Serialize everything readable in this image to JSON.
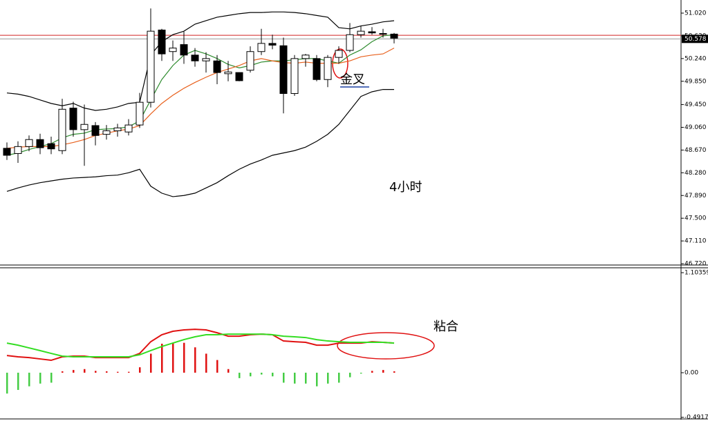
{
  "chart_data": [
    {
      "type": "candlestick",
      "open": [
        48.7,
        48.61,
        48.73,
        48.85,
        48.78,
        48.66,
        49.39,
        49.02,
        49.09,
        48.94,
        49.0,
        48.98,
        49.1,
        49.49,
        50.73,
        50.36,
        50.48,
        50.3,
        50.2,
        50.2,
        49.98,
        50.0,
        50.04,
        50.36,
        50.5,
        50.46,
        49.64,
        50.24,
        50.24,
        49.88,
        50.26,
        50.38,
        50.65,
        50.7,
        50.66,
        50.66
      ],
      "high": [
        48.8,
        48.82,
        48.92,
        48.95,
        48.9,
        49.55,
        49.5,
        49.45,
        49.15,
        49.1,
        49.12,
        49.2,
        49.65,
        51.1,
        50.75,
        50.55,
        50.7,
        50.42,
        50.35,
        50.3,
        50.2,
        50.0,
        50.45,
        50.75,
        50.65,
        50.6,
        50.3,
        50.32,
        50.3,
        50.3,
        50.45,
        50.85,
        50.8,
        50.78,
        50.75,
        50.68
      ],
      "low": [
        48.5,
        48.45,
        48.65,
        48.6,
        48.6,
        48.6,
        48.9,
        48.4,
        48.75,
        48.85,
        48.9,
        48.92,
        49.05,
        49.4,
        50.2,
        50.2,
        50.15,
        50.1,
        50.0,
        49.8,
        49.85,
        49.85,
        50.0,
        50.3,
        50.4,
        49.3,
        49.6,
        50.1,
        49.85,
        49.75,
        50.15,
        50.35,
        50.6,
        50.65,
        50.6,
        50.5
      ],
      "close": [
        48.58,
        48.73,
        48.85,
        48.71,
        48.69,
        49.37,
        49.02,
        49.11,
        48.92,
        49.0,
        49.05,
        49.1,
        49.49,
        50.71,
        50.32,
        50.42,
        50.3,
        50.2,
        50.24,
        50.0,
        50.01,
        49.86,
        50.36,
        50.5,
        50.47,
        49.64,
        50.24,
        50.3,
        49.88,
        50.26,
        50.38,
        50.65,
        50.71,
        50.68,
        50.67,
        50.59
      ],
      "series": [
        {
          "color": "#000000",
          "values": [
            49.65,
            49.63,
            49.59,
            49.53,
            49.47,
            49.43,
            49.47,
            49.39,
            49.35,
            49.37,
            49.41,
            49.47,
            49.49,
            50.3,
            50.53,
            50.65,
            50.71,
            50.83,
            50.89,
            50.95,
            50.98,
            51.01,
            51.03,
            51.03,
            51.04,
            51.04,
            51.03,
            51.01,
            50.98,
            50.95,
            50.77,
            50.75,
            50.8,
            50.83,
            50.87,
            50.89
          ]
        },
        {
          "color": "#000000",
          "values": [
            47.96,
            48.02,
            48.07,
            48.11,
            48.14,
            48.17,
            48.19,
            48.2,
            48.21,
            48.23,
            48.24,
            48.28,
            48.34,
            48.05,
            47.93,
            47.87,
            47.89,
            47.93,
            48.02,
            48.11,
            48.23,
            48.34,
            48.43,
            48.5,
            48.58,
            48.62,
            48.66,
            48.72,
            48.82,
            48.94,
            49.11,
            49.35,
            49.59,
            49.67,
            49.71,
            49.71
          ]
        },
        {
          "color": "#2e8b2e",
          "values": [
            48.58,
            48.62,
            48.68,
            48.73,
            48.78,
            48.88,
            48.94,
            48.96,
            49.02,
            49.03,
            49.04,
            49.07,
            49.17,
            49.53,
            49.88,
            50.12,
            50.3,
            50.38,
            50.32,
            50.24,
            50.14,
            50.08,
            50.12,
            50.18,
            50.2,
            50.2,
            50.22,
            50.24,
            50.24,
            50.2,
            50.16,
            50.3,
            50.39,
            50.53,
            50.63,
            50.65
          ]
        },
        {
          "color": "#e8601c",
          "values": [
            48.7,
            48.72,
            48.73,
            48.73,
            48.73,
            48.76,
            48.8,
            48.85,
            48.92,
            48.96,
            49.0,
            49.03,
            49.09,
            49.29,
            49.47,
            49.61,
            49.73,
            49.83,
            49.92,
            50.0,
            50.06,
            50.12,
            50.2,
            50.24,
            50.2,
            50.17,
            50.16,
            50.18,
            50.16,
            50.16,
            50.16,
            50.2,
            50.27,
            50.3,
            50.32,
            50.42
          ]
        }
      ],
      "ask_line": 50.64,
      "price_line": {
        "value": 50.578,
        "label": "50.578"
      },
      "ylim": [
        46.685,
        51.245
      ],
      "yticks": [
        {
          "value": 51.02,
          "label": "51.020"
        },
        {
          "value": 50.63,
          "label": "50.630"
        },
        {
          "value": 50.24,
          "label": "50.240"
        },
        {
          "value": 49.85,
          "label": "49.850"
        },
        {
          "value": 49.45,
          "label": "49.450"
        },
        {
          "value": 49.06,
          "label": "49.060"
        },
        {
          "value": 48.67,
          "label": "48.670"
        },
        {
          "value": 48.28,
          "label": "48.280"
        },
        {
          "value": 47.89,
          "label": "47.890"
        },
        {
          "value": 47.5,
          "label": "47.500"
        },
        {
          "value": 47.11,
          "label": "47.110"
        },
        {
          "value": 46.72,
          "label": "46.720"
        }
      ],
      "annotations": [
        "金叉",
        "4小时"
      ]
    },
    {
      "type": "macd",
      "values": [
        -0.23,
        -0.19,
        -0.15,
        -0.12,
        -0.11,
        0.015,
        0.03,
        0.04,
        0.02,
        0.015,
        0.01,
        0.01,
        0.06,
        0.21,
        0.32,
        0.33,
        0.33,
        0.28,
        0.21,
        0.14,
        0.04,
        -0.06,
        -0.04,
        -0.02,
        -0.04,
        -0.11,
        -0.12,
        -0.12,
        -0.15,
        -0.12,
        -0.11,
        -0.05,
        -0.01,
        0.02,
        0.03,
        0.015
      ],
      "series": [
        {
          "color": "#e01010",
          "values": [
            0.19,
            0.175,
            0.167,
            0.152,
            0.137,
            0.175,
            0.183,
            0.183,
            0.167,
            0.167,
            0.167,
            0.167,
            0.213,
            0.342,
            0.419,
            0.457,
            0.472,
            0.479,
            0.472,
            0.441,
            0.403,
            0.403,
            0.419,
            0.426,
            0.419,
            0.35,
            0.342,
            0.335,
            0.304,
            0.304,
            0.327,
            0.327,
            0.327,
            0.342,
            0.335,
            0.327
          ]
        },
        {
          "color": "#33dd22",
          "values": [
            0.327,
            0.304,
            0.274,
            0.244,
            0.213,
            0.183,
            0.175,
            0.175,
            0.175,
            0.175,
            0.175,
            0.175,
            0.198,
            0.244,
            0.289,
            0.327,
            0.365,
            0.396,
            0.419,
            0.419,
            0.426,
            0.426,
            0.426,
            0.426,
            0.419,
            0.403,
            0.396,
            0.388,
            0.365,
            0.35,
            0.342,
            0.335,
            0.335,
            0.335,
            0.335,
            0.327
          ]
        }
      ],
      "pos_color": "#e01010",
      "neg_color": "#44cc44",
      "ylim": [
        -0.51,
        1.15
      ],
      "yticks": [
        1.10359,
        {
          "value": 0,
          "label": "0.00"
        },
        -0.4917
      ],
      "annotations": [
        "粘合"
      ]
    }
  ]
}
